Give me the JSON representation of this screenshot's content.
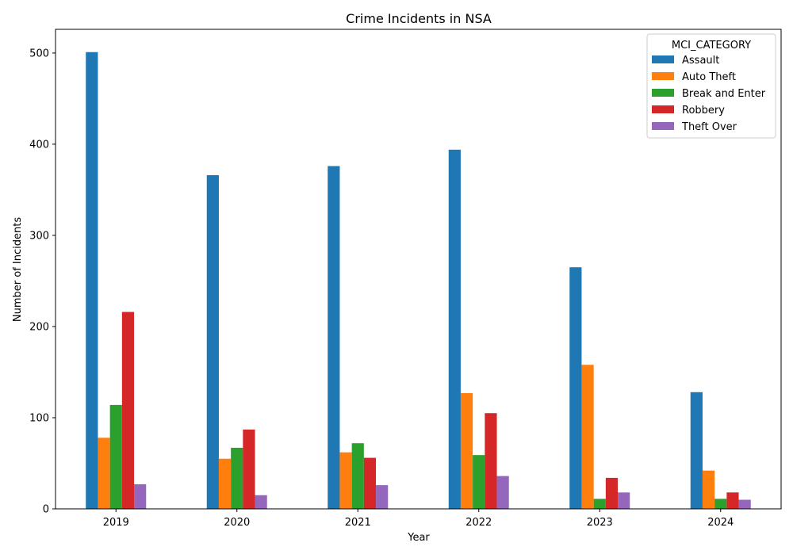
{
  "chart_data": {
    "type": "bar",
    "title": "Crime Incidents in NSA",
    "xlabel": "Year",
    "ylabel": "Number of Incidents",
    "categories": [
      "2019",
      "2020",
      "2021",
      "2022",
      "2023",
      "2024"
    ],
    "ylim": [
      0,
      526
    ],
    "yticks": [
      0,
      100,
      200,
      300,
      400,
      500
    ],
    "legend": {
      "title": "MCI_CATEGORY",
      "position": "top-right"
    },
    "grid": false,
    "series": [
      {
        "name": "Assault",
        "color": "#1f77b4",
        "values": [
          501,
          366,
          376,
          394,
          265,
          128
        ]
      },
      {
        "name": "Auto Theft",
        "color": "#ff7f0e",
        "values": [
          78,
          55,
          62,
          127,
          158,
          42
        ]
      },
      {
        "name": "Break and Enter",
        "color": "#2ca02c",
        "values": [
          114,
          67,
          72,
          59,
          11,
          11
        ]
      },
      {
        "name": "Robbery",
        "color": "#d62728",
        "values": [
          216,
          87,
          56,
          105,
          34,
          18
        ]
      },
      {
        "name": "Theft Over",
        "color": "#9467bd",
        "values": [
          27,
          15,
          26,
          36,
          18,
          10
        ]
      }
    ]
  }
}
